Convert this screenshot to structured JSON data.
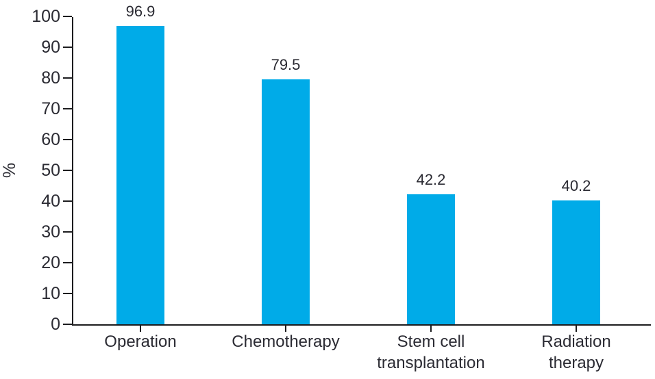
{
  "chart_data": {
    "type": "bar",
    "categories": [
      "Operation",
      "Chemotherapy",
      "Stem cell\ntransplantation",
      "Radiation\ntherapy"
    ],
    "values": [
      96.9,
      79.5,
      42.2,
      40.2
    ],
    "value_labels": [
      "96.9",
      "79.5",
      "42.2",
      "40.2"
    ],
    "title": "",
    "xlabel": "",
    "ylabel": "%",
    "ylim": [
      0,
      100
    ],
    "yticks": [
      0,
      10,
      20,
      30,
      40,
      50,
      60,
      70,
      80,
      90,
      100
    ],
    "grid": false,
    "legend": "none",
    "bar_color": "#00ABE8",
    "axis_color": "#1C1C1E",
    "text_color": "#2B2B33"
  }
}
